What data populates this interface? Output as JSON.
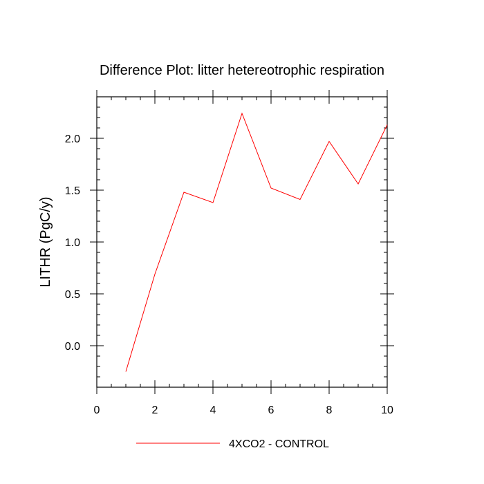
{
  "chart_data": {
    "type": "line",
    "title": "Difference Plot: litter hetereotrophic respiration",
    "xlabel": "",
    "ylabel": "LITHR  (PgC/y)",
    "xlim": [
      0,
      10
    ],
    "ylim": [
      -0.4,
      2.4
    ],
    "xticks": [
      0,
      2,
      4,
      6,
      8,
      10
    ],
    "xtick_labels": [
      "0",
      "2",
      "4",
      "6",
      "8",
      "10"
    ],
    "yticks": [
      0.0,
      0.5,
      1.0,
      1.5,
      2.0
    ],
    "ytick_labels": [
      "0.0",
      "0.5",
      "1.0",
      "1.5",
      "2.0"
    ],
    "grid": false,
    "legend_position": "bottom-center",
    "series": [
      {
        "name": "4XCO2 - CONTROL",
        "color": "#ff0000",
        "x": [
          1,
          2,
          3,
          4,
          5,
          6,
          7,
          8,
          9,
          10
        ],
        "values": [
          -0.25,
          0.69,
          1.48,
          1.38,
          2.24,
          1.52,
          1.41,
          1.97,
          1.56,
          2.13
        ]
      }
    ]
  }
}
